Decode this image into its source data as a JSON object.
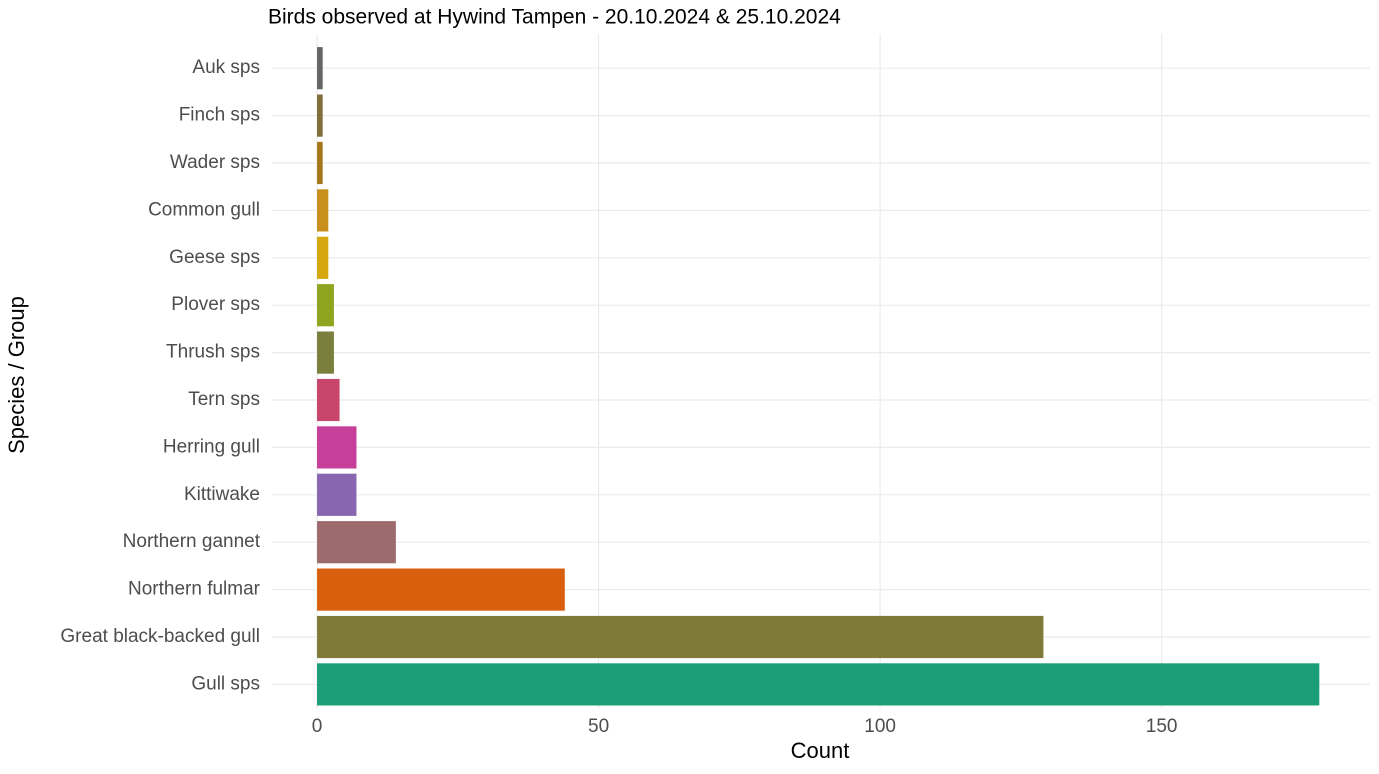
{
  "chart_data": {
    "type": "barh",
    "title": "Birds observed at Hywind Tampen - 20.10.2024 & 25.10.2024",
    "xlabel": "Count",
    "ylabel": "Species / Group",
    "categories": [
      "Auk sps",
      "Finch sps",
      "Wader sps",
      "Common gull",
      "Geese sps",
      "Plover sps",
      "Thrush sps",
      "Tern sps",
      "Herring gull",
      "Kittiwake",
      "Northern gannet",
      "Northern fulmar",
      "Great black-backed gull",
      "Gull sps"
    ],
    "values": [
      1,
      1,
      1,
      2,
      2,
      3,
      3,
      4,
      7,
      7,
      14,
      44,
      129,
      178
    ],
    "colors": [
      "#666666",
      "#7e6e3a",
      "#a6761d",
      "#c8901a",
      "#d4a80e",
      "#8fa51f",
      "#7a7f3c",
      "#c8466c",
      "#c63f98",
      "#8866b0",
      "#9d6a6e",
      "#d95f0e",
      "#7f7a37",
      "#1b9e77"
    ],
    "xlim": [
      -8,
      187
    ],
    "xticks": [
      0,
      50,
      100,
      150
    ],
    "grid": true
  }
}
